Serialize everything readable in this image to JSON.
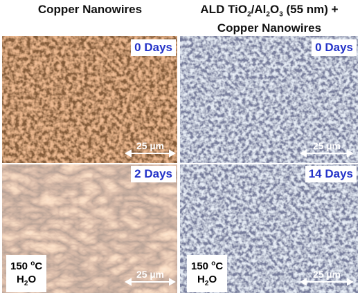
{
  "headers": {
    "left": "Copper Nanowires",
    "right": {
      "line1": [
        "ALD TiO",
        "2",
        "/Al",
        "2",
        "O",
        "3",
        " (55 nm) +"
      ],
      "line2": "Copper Nanowires"
    }
  },
  "panels": [
    {
      "label": "0 Days",
      "scale": "25 µm"
    },
    {
      "label": "0 Days",
      "scale": "25 µm"
    },
    {
      "label": "2 Days",
      "scale": "25 µm",
      "condition": {
        "temp": [
          "150 ",
          "o",
          "C"
        ],
        "medium": [
          "H",
          "2",
          "O"
        ]
      }
    },
    {
      "label": "14 Days",
      "scale": "25 µm",
      "condition": {
        "temp": [
          "150 ",
          "o",
          "C"
        ],
        "medium": [
          "H",
          "2",
          "O"
        ]
      }
    }
  ]
}
